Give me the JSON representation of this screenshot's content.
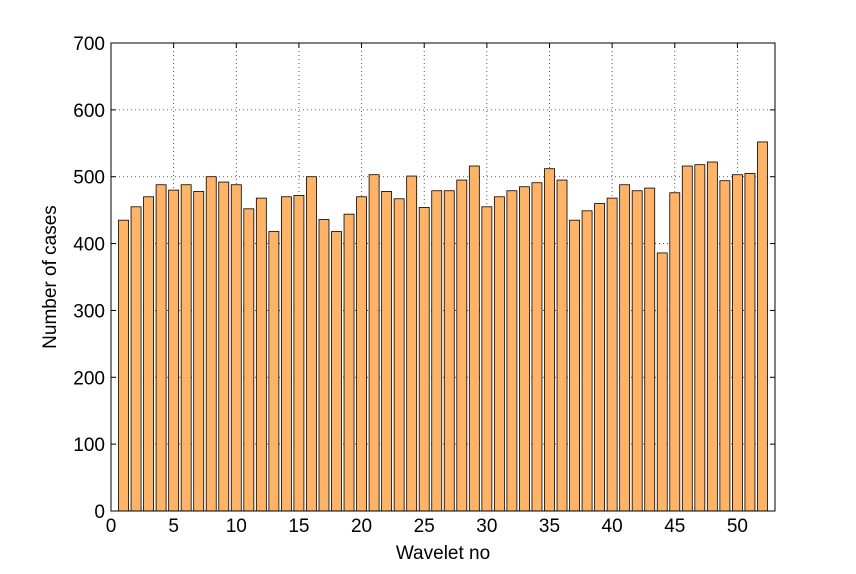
{
  "chart_data": {
    "type": "bar",
    "xlabel": "Wavelet no",
    "ylabel": "Number of cases",
    "x": [
      1,
      2,
      3,
      4,
      5,
      6,
      7,
      8,
      9,
      10,
      11,
      12,
      13,
      14,
      15,
      16,
      17,
      18,
      19,
      20,
      21,
      22,
      23,
      24,
      25,
      26,
      27,
      28,
      29,
      30,
      31,
      32,
      33,
      34,
      35,
      36,
      37,
      38,
      39,
      40,
      41,
      42,
      43,
      44,
      45,
      46,
      47,
      48,
      49,
      50,
      51,
      52
    ],
    "values": [
      435,
      455,
      470,
      488,
      480,
      488,
      478,
      500,
      492,
      488,
      452,
      468,
      418,
      470,
      472,
      500,
      436,
      418,
      444,
      470,
      503,
      478,
      467,
      501,
      454,
      479,
      479,
      495,
      516,
      455,
      470,
      479,
      485,
      491,
      512,
      495,
      435,
      449,
      460,
      468,
      488,
      479,
      483,
      386,
      476,
      516,
      518,
      522,
      494,
      503,
      505,
      552
    ],
    "color": "#ffb366",
    "xlim": [
      0,
      53
    ],
    "xticks": [
      0,
      5,
      10,
      15,
      20,
      25,
      30,
      35,
      40,
      45,
      50
    ],
    "ylim": [
      0,
      700
    ],
    "yticks": [
      0,
      100,
      200,
      300,
      400,
      500,
      600,
      700
    ],
    "grid": true
  }
}
